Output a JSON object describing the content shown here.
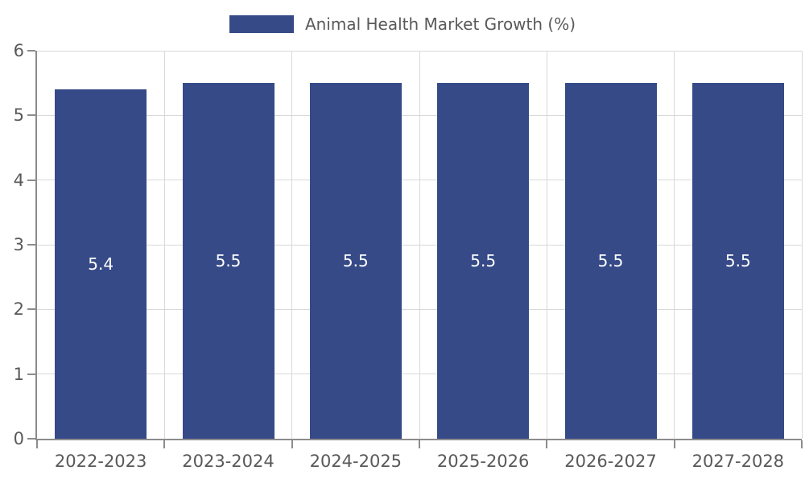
{
  "chart_data": {
    "type": "bar",
    "title": "Animal Health Market Growth (%)",
    "legend": [
      {
        "label": "Animal Health Market Growth (%)",
        "color": "#364a88"
      }
    ],
    "legend_position": "top-center",
    "categories": [
      "2022-2023",
      "2023-2024",
      "2024-2025",
      "2025-2026",
      "2026-2027",
      "2027-2028"
    ],
    "values": [
      5.4,
      5.5,
      5.5,
      5.5,
      5.5,
      5.5
    ],
    "bar_labels": [
      "5.4",
      "5.5",
      "5.5",
      "5.5",
      "5.5",
      "5.5"
    ],
    "xlabel": "",
    "ylabel": "",
    "ylim": [
      0,
      6
    ],
    "yticks": [
      0,
      1,
      2,
      3,
      4,
      5,
      6
    ],
    "grid": true
  },
  "colors": {
    "bar": "#364a88",
    "grid": "#d9d9d9",
    "axis": "#8c8c8c",
    "text": "#595959",
    "bar_label": "#ffffff",
    "background": "#ffffff"
  }
}
